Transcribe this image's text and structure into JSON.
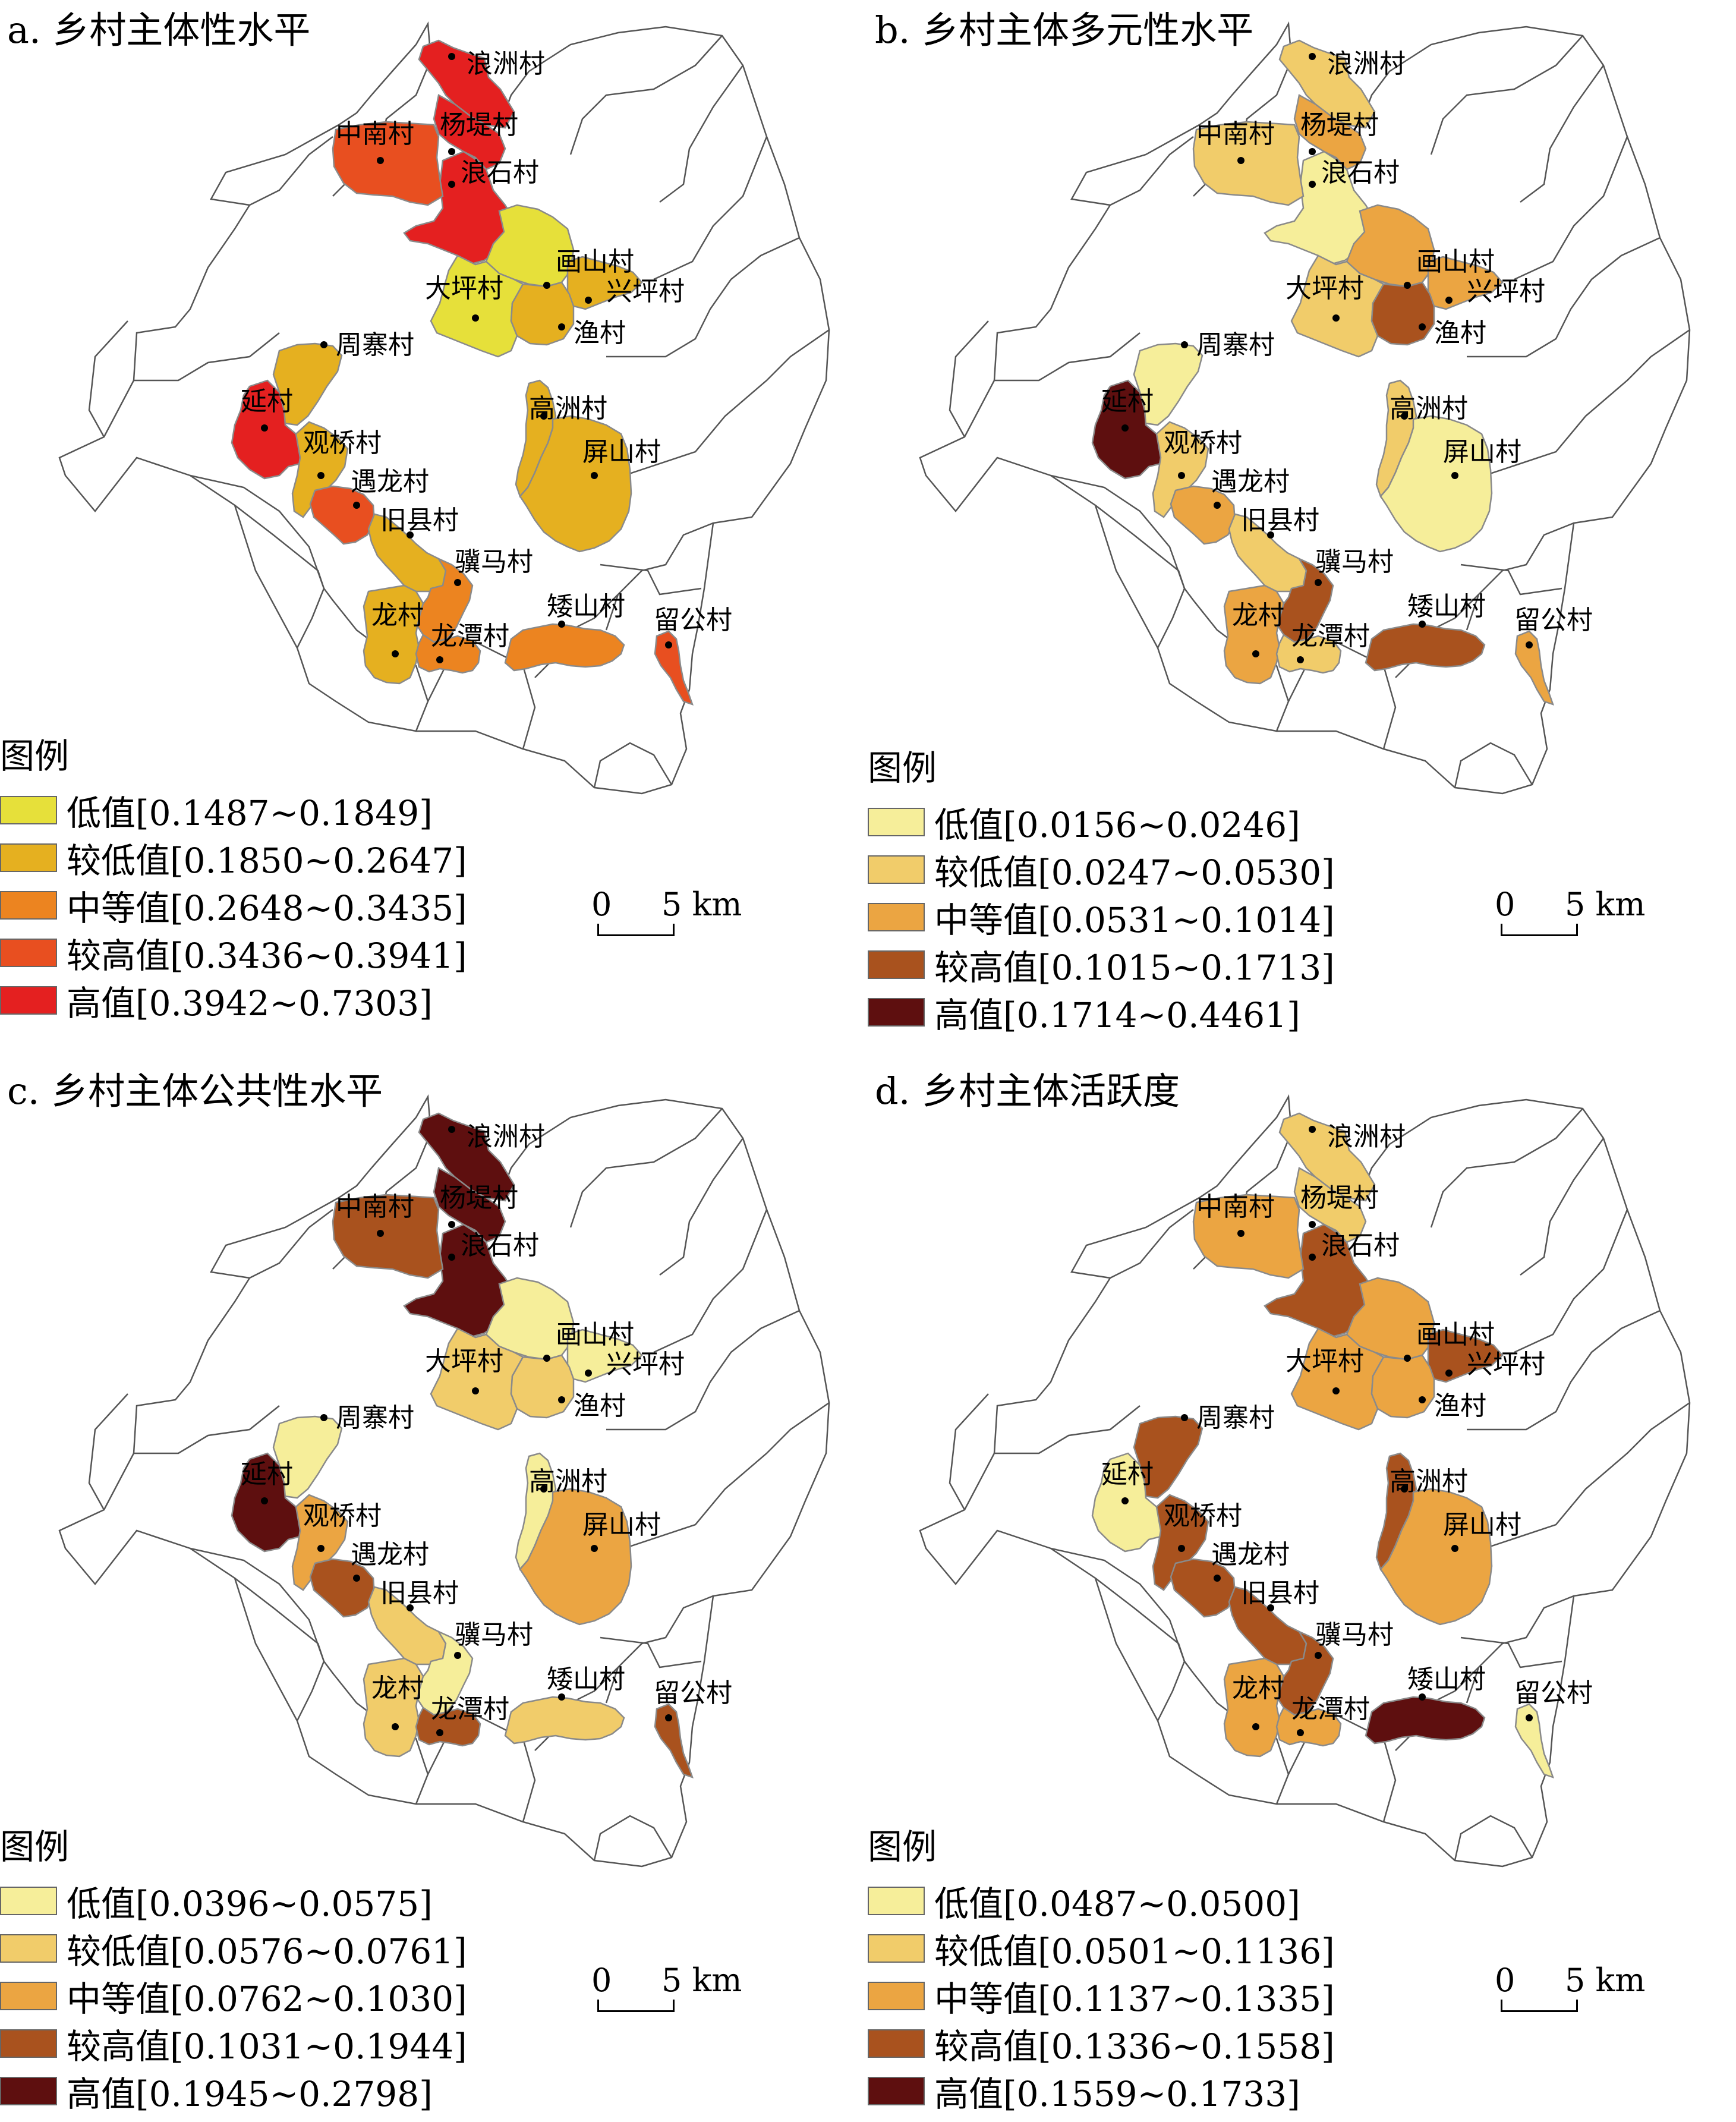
{
  "panels": [
    {
      "title": "a. 乡村主体性水平",
      "legend_title": "图例",
      "scale": {
        "zero": "0",
        "five": "5 km"
      },
      "legend": [
        {
          "label": "低值[0.1487~0.1849]",
          "color": "#e6e03a"
        },
        {
          "label": "较低值[0.1850~0.2647]",
          "color": "#e5b020"
        },
        {
          "label": "中等值[0.2648~0.3435]",
          "color": "#ec8420"
        },
        {
          "label": "较高值[0.3436~0.3941]",
          "color": "#e84f20"
        },
        {
          "label": "高值[0.3942~0.7303]",
          "color": "#e42020"
        }
      ],
      "classes": {
        "浪洲村": 4,
        "杨堤村": 4,
        "浪石村": 4,
        "中南村": 3,
        "画山村": 0,
        "大坪村": 0,
        "兴坪村": 1,
        "渔村": 1,
        "周寨村": 1,
        "延村": 4,
        "观桥村": 1,
        "遇龙村": 3,
        "旧县村": 1,
        "高洲村": 1,
        "屏山村": 1,
        "骥马村": 2,
        "龙村": 1,
        "龙潭村": 2,
        "矮山村": 2,
        "留公村": 3
      }
    },
    {
      "title": "b. 乡村主体多元性水平",
      "legend_title": "图例",
      "scale": {
        "zero": "0",
        "five": "5 km"
      },
      "legend": [
        {
          "label": "低值[0.0156~0.0246]",
          "color": "#f6ee9a"
        },
        {
          "label": "较低值[0.0247~0.0530]",
          "color": "#f1cc6a"
        },
        {
          "label": "中等值[0.0531~0.1014]",
          "color": "#eba542"
        },
        {
          "label": "较高值[0.1015~0.1713]",
          "color": "#a9521e"
        },
        {
          "label": "高值[0.1714~0.4461]",
          "color": "#5e0f0f"
        }
      ],
      "classes": {
        "浪洲村": 1,
        "杨堤村": 2,
        "浪石村": 0,
        "中南村": 1,
        "画山村": 2,
        "大坪村": 1,
        "兴坪村": 2,
        "渔村": 3,
        "周寨村": 0,
        "延村": 4,
        "观桥村": 1,
        "遇龙村": 2,
        "旧县村": 1,
        "高洲村": 1,
        "屏山村": 0,
        "骥马村": 3,
        "龙村": 2,
        "龙潭村": 1,
        "矮山村": 3,
        "留公村": 2
      }
    },
    {
      "title": "c. 乡村主体公共性水平",
      "legend_title": "图例",
      "scale": {
        "zero": "0",
        "five": "5 km"
      },
      "legend": [
        {
          "label": "低值[0.0396~0.0575]",
          "color": "#f6ee9a"
        },
        {
          "label": "较低值[0.0576~0.0761]",
          "color": "#f1cc6a"
        },
        {
          "label": "中等值[0.0762~0.1030]",
          "color": "#eba542"
        },
        {
          "label": "较高值[0.1031~0.1944]",
          "color": "#a9521e"
        },
        {
          "label": "高值[0.1945~0.2798]",
          "color": "#5e0f0f"
        }
      ],
      "classes": {
        "浪洲村": 4,
        "杨堤村": 4,
        "浪石村": 4,
        "中南村": 3,
        "画山村": 0,
        "大坪村": 1,
        "兴坪村": 0,
        "渔村": 1,
        "周寨村": 0,
        "延村": 4,
        "观桥村": 2,
        "遇龙村": 3,
        "旧县村": 1,
        "高洲村": 0,
        "屏山村": 2,
        "骥马村": 0,
        "龙村": 1,
        "龙潭村": 3,
        "矮山村": 1,
        "留公村": 3
      }
    },
    {
      "title": "d. 乡村主体活跃度",
      "legend_title": "图例",
      "scale": {
        "zero": "0",
        "five": "5 km"
      },
      "legend": [
        {
          "label": "低值[0.0487~0.0500]",
          "color": "#f6ee9a"
        },
        {
          "label": "较低值[0.0501~0.1136]",
          "color": "#f1cc6a"
        },
        {
          "label": "中等值[0.1137~0.1335]",
          "color": "#eba542"
        },
        {
          "label": "较高值[0.1336~0.1558]",
          "color": "#a9521e"
        },
        {
          "label": "高值[0.1559~0.1733]",
          "color": "#5e0f0f"
        }
      ],
      "classes": {
        "浪洲村": 1,
        "杨堤村": 1,
        "浪石村": 3,
        "中南村": 2,
        "画山村": 2,
        "大坪村": 2,
        "兴坪村": 3,
        "渔村": 2,
        "周寨村": 3,
        "延村": 0,
        "观桥村": 3,
        "遇龙村": 3,
        "旧县村": 3,
        "高洲村": 3,
        "屏山村": 2,
        "骥马村": 3,
        "龙村": 2,
        "龙潭村": 2,
        "矮山村": 4,
        "留公村": 0
      }
    }
  ],
  "villages": [
    "浪洲村",
    "杨堤村",
    "浪石村",
    "中南村",
    "画山村",
    "大坪村",
    "兴坪村",
    "渔村",
    "周寨村",
    "延村",
    "观桥村",
    "遇龙村",
    "旧县村",
    "高洲村",
    "屏山村",
    "骥马村",
    "龙村",
    "龙潭村",
    "矮山村",
    "留公村"
  ]
}
